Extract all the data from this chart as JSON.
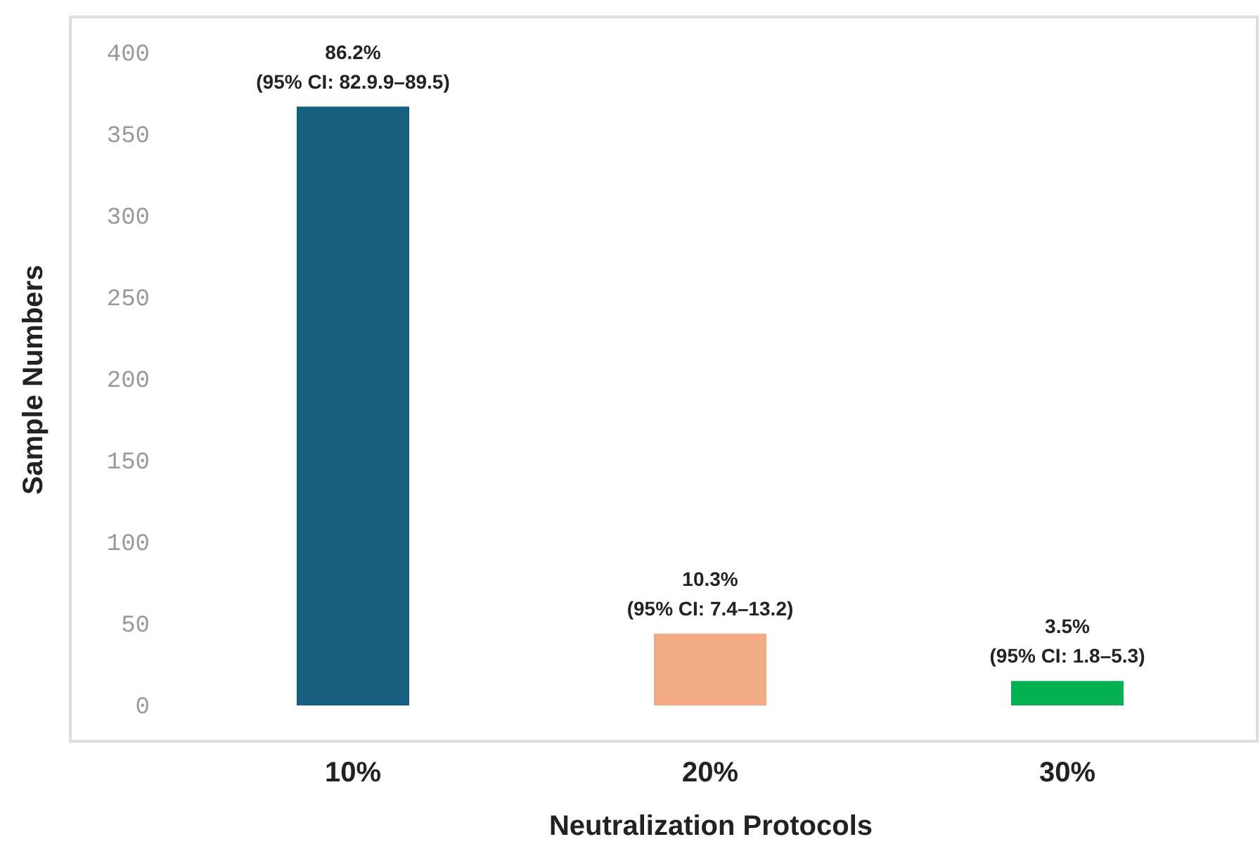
{
  "chart_data": {
    "type": "bar",
    "xlabel": "Neutralization Protocols",
    "ylabel": "Sample Numbers",
    "categories": [
      "10%",
      "20%",
      "30%"
    ],
    "values": [
      367,
      44,
      15
    ],
    "colors": [
      "#18607f",
      "#f2aa84",
      "#05b050"
    ],
    "annotations": [
      {
        "text": "86.2%\n(95% CI: 82.9.9–89.5)",
        "x": "10%",
        "y": 367
      },
      {
        "text": "10.3%\n(95% CI: 7.4–13.2)",
        "x": "20%",
        "y": 44
      },
      {
        "text": "3.5%\n(95% CI: 1.8–5.3)",
        "x": "30%",
        "y": 15
      }
    ],
    "ylim": [
      -22,
      422
    ],
    "yticks": [
      0,
      50,
      100,
      150,
      200,
      250,
      300,
      350,
      400
    ],
    "grid": false
  }
}
